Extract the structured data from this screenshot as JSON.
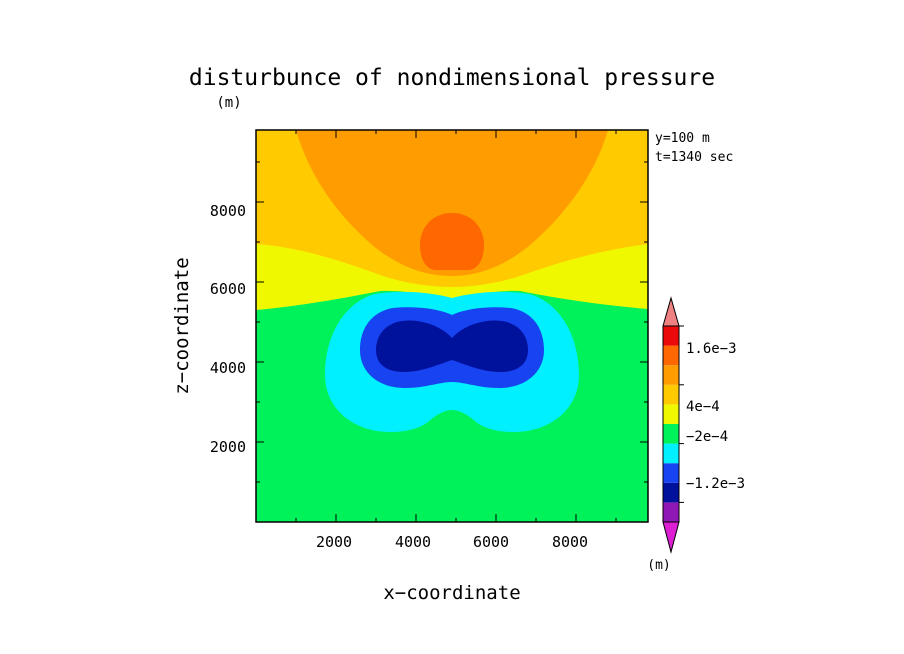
{
  "chart_data": {
    "type": "heatmap",
    "title": "disturbunce of nondimensional pressure",
    "y_unit": "(m)",
    "xlabel": "x−coordinate",
    "ylabel": "z−coordinate",
    "xlim": [
      0,
      9800
    ],
    "ylim": [
      0,
      9800
    ],
    "x_ticks": [
      2000,
      4000,
      6000,
      8000
    ],
    "y_ticks": [
      2000,
      4000,
      6000,
      8000
    ],
    "annotations": [
      "y=100 m",
      "t=1340 sec"
    ],
    "colorbar": {
      "unit": "(m)",
      "levels": [
        -0.0016,
        -0.0012,
        -0.0008,
        -0.0004,
        -0.0002,
        0,
        0.0002,
        0.0004,
        0.0008,
        0.0012,
        0.0016
      ],
      "colors": [
        "#dd1ed2",
        "#8f17b3",
        "#00129c",
        "#1843f0",
        "#00f0ff",
        "#00f25a",
        "#f0f800",
        "#ffca00",
        "#ff9c00",
        "#ff6800",
        "#eb0a0a",
        "#ee8282"
      ],
      "tick_labels": [
        {
          "label": "1.6e−3",
          "level": 0.0016
        },
        {
          "label": "4e−4",
          "level": 0.0004
        },
        {
          "label": "−2e−4",
          "level": -0.0002
        },
        {
          "label": "−1.2e−3",
          "level": -0.0012
        }
      ]
    },
    "regions": [
      {
        "name": "background",
        "value_range": [
          -0.0002,
          0
        ],
        "color": "#00f25a"
      },
      {
        "name": "positive-band",
        "value_range": [
          0,
          0.0002
        ],
        "color": "#f0f800"
      },
      {
        "name": "upper-region",
        "value_range": [
          0.0002,
          0.0004
        ],
        "color": "#ffca00"
      },
      {
        "name": "bowl",
        "value_range": [
          0.0004,
          0.0008
        ],
        "color": "#ff9c00"
      },
      {
        "name": "high-core",
        "value_range": [
          0.0008,
          0.0012
        ],
        "color": "#ff6800",
        "center": [
          5000,
          7000
        ]
      },
      {
        "name": "outer-negative",
        "value_range": [
          -0.0004,
          -0.0002
        ],
        "color": "#00f0ff"
      },
      {
        "name": "mid-negative",
        "value_range": [
          -0.0008,
          -0.0004
        ],
        "color": "#1843f0"
      },
      {
        "name": "low-core",
        "value_range": [
          -0.0012,
          -0.0008
        ],
        "color": "#00129c",
        "center": [
          5000,
          4500
        ]
      }
    ]
  }
}
